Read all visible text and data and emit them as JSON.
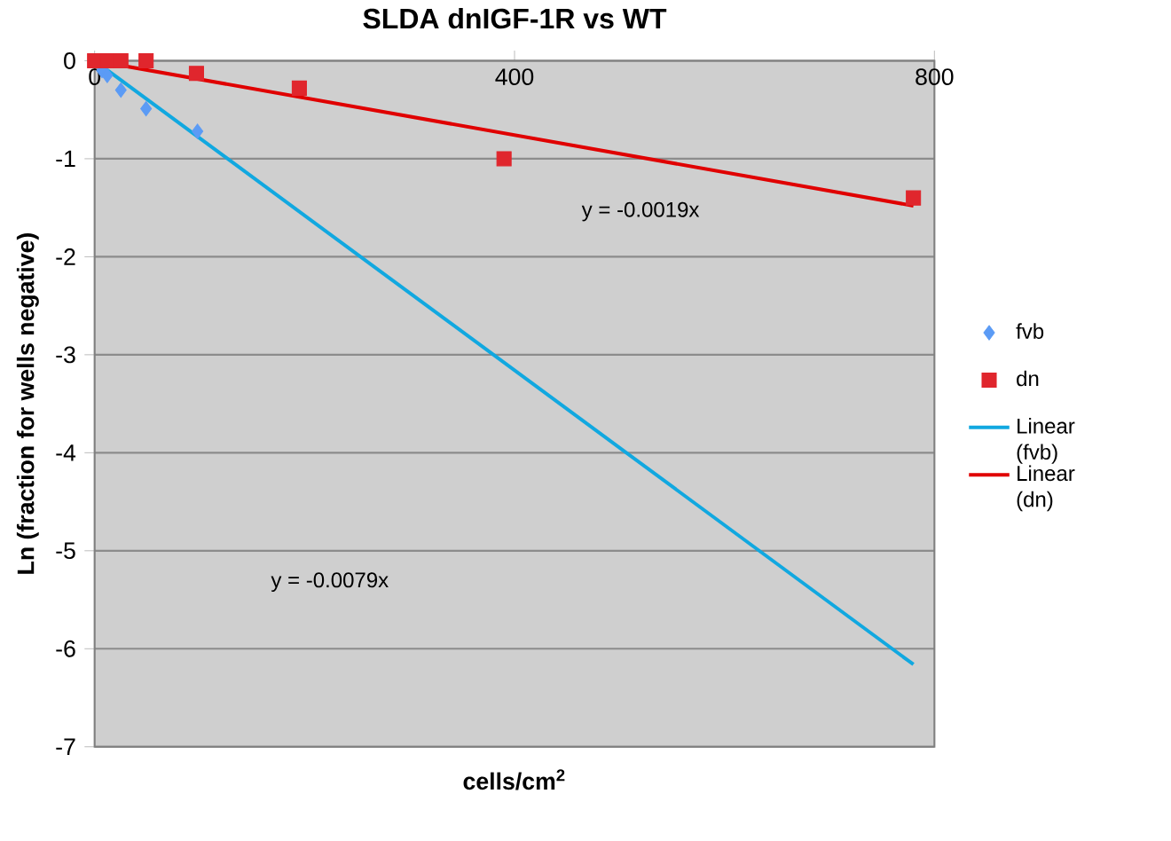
{
  "chart_data": {
    "type": "scatter",
    "title": "SLDA dnIGF-1R vs WT",
    "xlabel": "cells/cm$^{2}$",
    "ylabel": "Ln (fraction for wells negative)",
    "xlim": [
      0,
      800
    ],
    "xticks": [
      0,
      400,
      800
    ],
    "ylim": [
      -7,
      0
    ],
    "yticks": [
      -7,
      -6,
      -5,
      -4,
      -3,
      -2,
      -1,
      0
    ],
    "grid": "y",
    "legend": "right",
    "series": [
      {
        "name": "fvb",
        "marker": "diamond",
        "color": "#5b9bf5",
        "x": [
          7,
          12,
          25,
          49,
          98
        ],
        "values": [
          -0.1,
          -0.15,
          -0.3,
          -0.49,
          -0.72
        ]
      },
      {
        "name": "dn",
        "marker": "square",
        "color": "#e0262d",
        "x": [
          0,
          12,
          25,
          49,
          97,
          195,
          390,
          780
        ],
        "values": [
          0,
          0,
          0,
          0,
          -0.13,
          -0.28,
          -1.0,
          -1.4
        ]
      },
      {
        "name": "Linear (fvb)",
        "type": "line",
        "marker": "none",
        "color": "#11a8e0",
        "x": [
          0,
          780
        ],
        "values": [
          0,
          -6.16
        ]
      },
      {
        "name": "Linear (dn)",
        "type": "line",
        "marker": "none",
        "color": "#e00000",
        "x": [
          0,
          780
        ],
        "values": [
          0,
          -1.48
        ]
      }
    ],
    "annotations": [
      "y = -0.0019x",
      "y = -0.0079x"
    ]
  }
}
